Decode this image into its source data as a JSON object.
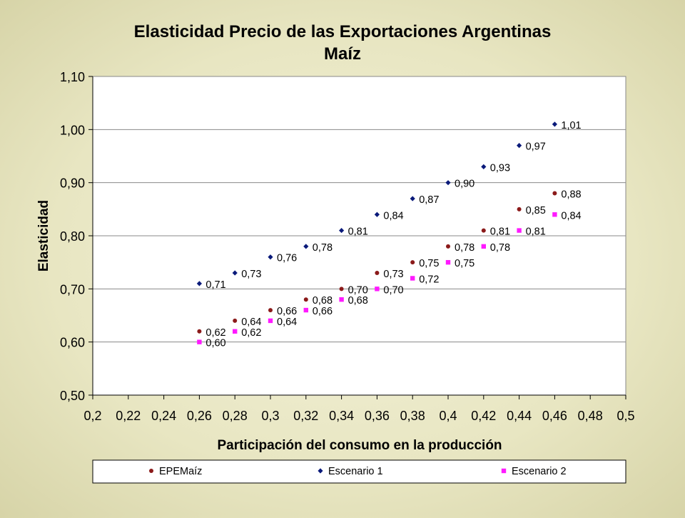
{
  "chart_data": {
    "type": "scatter",
    "title": "Elasticidad Precio de las Exportaciones Argentinas",
    "subtitle": "Maíz",
    "xlabel": "Participación del consumo en la producción",
    "ylabel": "Elasticidad",
    "xlim": [
      0.2,
      0.5
    ],
    "ylim": [
      0.5,
      1.1
    ],
    "x_ticks": [
      "0,2",
      "0,22",
      "0,24",
      "0,26",
      "0,28",
      "0,3",
      "0,32",
      "0,34",
      "0,36",
      "0,38",
      "0,4",
      "0,42",
      "0,44",
      "0,46",
      "0,48",
      "0,5"
    ],
    "y_ticks": [
      "0,50",
      "0,60",
      "0,70",
      "0,80",
      "0,90",
      "1,00",
      "1,10"
    ],
    "grid": "horizontal",
    "legend_position": "bottom",
    "x": [
      0.26,
      0.28,
      0.3,
      0.32,
      0.34,
      0.36,
      0.38,
      0.4,
      0.42,
      0.44,
      0.46
    ],
    "series": [
      {
        "name": "EPEMaíz",
        "color": "#8b1a1a",
        "marker": "circle",
        "values": [
          0.62,
          0.64,
          0.66,
          0.68,
          0.7,
          0.73,
          0.75,
          0.78,
          0.81,
          0.85,
          0.88
        ],
        "labels": [
          "0,62",
          "0,64",
          "0,66",
          "0,68",
          "0,70",
          "0,73",
          "0,75",
          "0,78",
          "0,81",
          "0,85",
          "0,88"
        ]
      },
      {
        "name": "Escenario 1",
        "color": "#0a1a7a",
        "marker": "diamond",
        "values": [
          0.71,
          0.73,
          0.76,
          0.78,
          0.81,
          0.84,
          0.87,
          0.9,
          0.93,
          0.97,
          1.01
        ],
        "labels": [
          "0,71",
          "0,73",
          "0,76",
          "0,78",
          "0,81",
          "0,84",
          "0,87",
          "0,90",
          "0,93",
          "0,97",
          "1,01"
        ]
      },
      {
        "name": "Escenario 2",
        "color": "#ff1aff",
        "marker": "square",
        "values": [
          0.6,
          0.62,
          0.64,
          0.66,
          0.68,
          0.7,
          0.72,
          0.75,
          0.78,
          0.81,
          0.84
        ],
        "labels": [
          "0,60",
          "0,62",
          "0,64",
          "0,66",
          "0,68",
          "0,70",
          "0,72",
          "0,75",
          "0,78",
          "0,81",
          "0,84"
        ]
      }
    ]
  }
}
